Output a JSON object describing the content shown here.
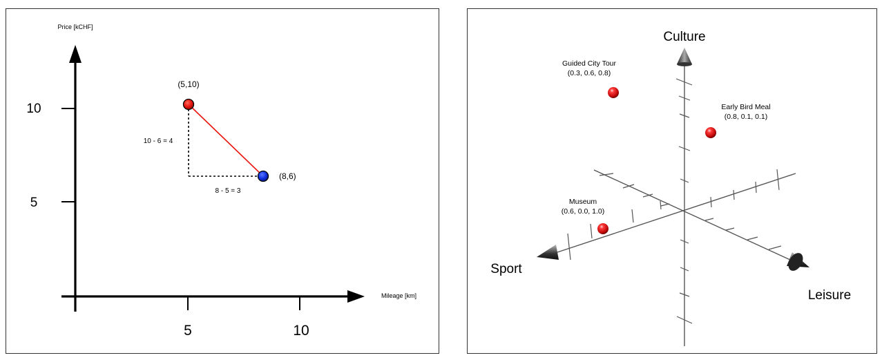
{
  "left_plot": {
    "y_axis_label": "Price [kCHF]",
    "x_axis_label": "Mileage [km]",
    "y_ticks": [
      "10",
      "5"
    ],
    "x_ticks": [
      "5",
      "10"
    ],
    "points": [
      {
        "label": "(5,10)",
        "x": 5,
        "y": 10,
        "color": "#e8150f"
      },
      {
        "label": "(8,6)",
        "x": 8,
        "y": 6,
        "color": "#1330e0"
      }
    ],
    "vertical_difference": "10 - 6 = 4",
    "horizontal_difference": "8 - 5 = 3",
    "line_color": "#e8150f"
  },
  "right_plot": {
    "axes": {
      "culture": "Culture",
      "sport": "Sport",
      "leisure": "Leisure"
    },
    "points": [
      {
        "name": "Guided City Tour",
        "coords": "(0.3, 0.6, 0.8)"
      },
      {
        "name": "Early Bird Meal",
        "coords": "(0.8, 0.1, 0.1)"
      },
      {
        "name": "Museum",
        "coords": "(0.6, 0.0, 1.0)"
      }
    ],
    "point_color": "#e01010"
  }
}
